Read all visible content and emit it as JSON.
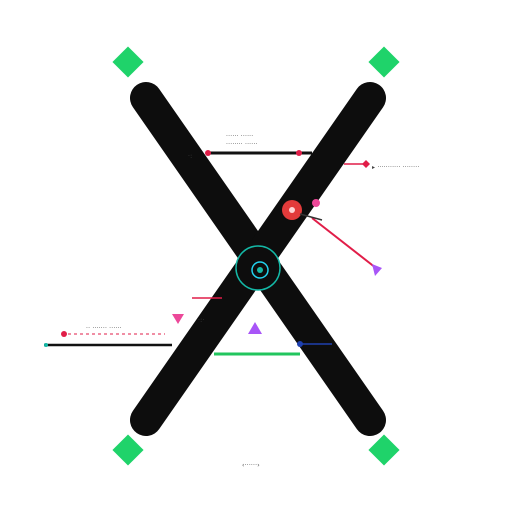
{
  "diagram": {
    "kind": "x-shaped-node-diagram",
    "labels": {
      "top_line_1": "······ ······",
      "top_line_2": "········ ······",
      "right_label": "▸ ··········· ········",
      "left_label_1": "·· ······· ······",
      "bottom_caption": "‹······›"
    },
    "colors": {
      "bar": "#0d0d0d",
      "accent_green": "#22c55e",
      "corner_green": "#1fd36a",
      "accent_red": "#e11d48",
      "accent_pink": "#ec4899",
      "accent_purple": "#a855f7",
      "accent_teal": "#14b8a6",
      "accent_blue": "#1e40af"
    },
    "icons": {
      "corner_markers": "green-diamond-icon",
      "center": "target-ring-icon",
      "node": "red-dot-icon",
      "arrows": "triangle-arrow-icon"
    }
  }
}
